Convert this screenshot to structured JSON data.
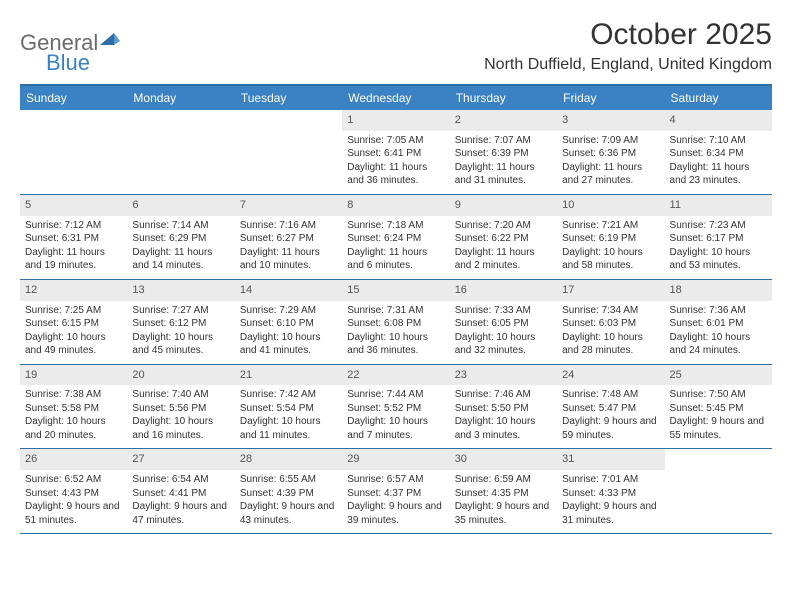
{
  "logo": {
    "general": "General",
    "blue": "Blue"
  },
  "title": "October 2025",
  "location": "North Duffield, England, United Kingdom",
  "colors": {
    "header_bg": "#3b82c4",
    "border": "#2f6ea8",
    "daynum_bg": "#ebebeb",
    "text": "#333333",
    "logo_gray": "#6b6b6b"
  },
  "weekdays": [
    "Sunday",
    "Monday",
    "Tuesday",
    "Wednesday",
    "Thursday",
    "Friday",
    "Saturday"
  ],
  "weeks": [
    [
      {
        "num": "",
        "sunrise": "",
        "sunset": "",
        "daylight": ""
      },
      {
        "num": "",
        "sunrise": "",
        "sunset": "",
        "daylight": ""
      },
      {
        "num": "",
        "sunrise": "",
        "sunset": "",
        "daylight": ""
      },
      {
        "num": "1",
        "sunrise": "Sunrise: 7:05 AM",
        "sunset": "Sunset: 6:41 PM",
        "daylight": "Daylight: 11 hours and 36 minutes."
      },
      {
        "num": "2",
        "sunrise": "Sunrise: 7:07 AM",
        "sunset": "Sunset: 6:39 PM",
        "daylight": "Daylight: 11 hours and 31 minutes."
      },
      {
        "num": "3",
        "sunrise": "Sunrise: 7:09 AM",
        "sunset": "Sunset: 6:36 PM",
        "daylight": "Daylight: 11 hours and 27 minutes."
      },
      {
        "num": "4",
        "sunrise": "Sunrise: 7:10 AM",
        "sunset": "Sunset: 6:34 PM",
        "daylight": "Daylight: 11 hours and 23 minutes."
      }
    ],
    [
      {
        "num": "5",
        "sunrise": "Sunrise: 7:12 AM",
        "sunset": "Sunset: 6:31 PM",
        "daylight": "Daylight: 11 hours and 19 minutes."
      },
      {
        "num": "6",
        "sunrise": "Sunrise: 7:14 AM",
        "sunset": "Sunset: 6:29 PM",
        "daylight": "Daylight: 11 hours and 14 minutes."
      },
      {
        "num": "7",
        "sunrise": "Sunrise: 7:16 AM",
        "sunset": "Sunset: 6:27 PM",
        "daylight": "Daylight: 11 hours and 10 minutes."
      },
      {
        "num": "8",
        "sunrise": "Sunrise: 7:18 AM",
        "sunset": "Sunset: 6:24 PM",
        "daylight": "Daylight: 11 hours and 6 minutes."
      },
      {
        "num": "9",
        "sunrise": "Sunrise: 7:20 AM",
        "sunset": "Sunset: 6:22 PM",
        "daylight": "Daylight: 11 hours and 2 minutes."
      },
      {
        "num": "10",
        "sunrise": "Sunrise: 7:21 AM",
        "sunset": "Sunset: 6:19 PM",
        "daylight": "Daylight: 10 hours and 58 minutes."
      },
      {
        "num": "11",
        "sunrise": "Sunrise: 7:23 AM",
        "sunset": "Sunset: 6:17 PM",
        "daylight": "Daylight: 10 hours and 53 minutes."
      }
    ],
    [
      {
        "num": "12",
        "sunrise": "Sunrise: 7:25 AM",
        "sunset": "Sunset: 6:15 PM",
        "daylight": "Daylight: 10 hours and 49 minutes."
      },
      {
        "num": "13",
        "sunrise": "Sunrise: 7:27 AM",
        "sunset": "Sunset: 6:12 PM",
        "daylight": "Daylight: 10 hours and 45 minutes."
      },
      {
        "num": "14",
        "sunrise": "Sunrise: 7:29 AM",
        "sunset": "Sunset: 6:10 PM",
        "daylight": "Daylight: 10 hours and 41 minutes."
      },
      {
        "num": "15",
        "sunrise": "Sunrise: 7:31 AM",
        "sunset": "Sunset: 6:08 PM",
        "daylight": "Daylight: 10 hours and 36 minutes."
      },
      {
        "num": "16",
        "sunrise": "Sunrise: 7:33 AM",
        "sunset": "Sunset: 6:05 PM",
        "daylight": "Daylight: 10 hours and 32 minutes."
      },
      {
        "num": "17",
        "sunrise": "Sunrise: 7:34 AM",
        "sunset": "Sunset: 6:03 PM",
        "daylight": "Daylight: 10 hours and 28 minutes."
      },
      {
        "num": "18",
        "sunrise": "Sunrise: 7:36 AM",
        "sunset": "Sunset: 6:01 PM",
        "daylight": "Daylight: 10 hours and 24 minutes."
      }
    ],
    [
      {
        "num": "19",
        "sunrise": "Sunrise: 7:38 AM",
        "sunset": "Sunset: 5:58 PM",
        "daylight": "Daylight: 10 hours and 20 minutes."
      },
      {
        "num": "20",
        "sunrise": "Sunrise: 7:40 AM",
        "sunset": "Sunset: 5:56 PM",
        "daylight": "Daylight: 10 hours and 16 minutes."
      },
      {
        "num": "21",
        "sunrise": "Sunrise: 7:42 AM",
        "sunset": "Sunset: 5:54 PM",
        "daylight": "Daylight: 10 hours and 11 minutes."
      },
      {
        "num": "22",
        "sunrise": "Sunrise: 7:44 AM",
        "sunset": "Sunset: 5:52 PM",
        "daylight": "Daylight: 10 hours and 7 minutes."
      },
      {
        "num": "23",
        "sunrise": "Sunrise: 7:46 AM",
        "sunset": "Sunset: 5:50 PM",
        "daylight": "Daylight: 10 hours and 3 minutes."
      },
      {
        "num": "24",
        "sunrise": "Sunrise: 7:48 AM",
        "sunset": "Sunset: 5:47 PM",
        "daylight": "Daylight: 9 hours and 59 minutes."
      },
      {
        "num": "25",
        "sunrise": "Sunrise: 7:50 AM",
        "sunset": "Sunset: 5:45 PM",
        "daylight": "Daylight: 9 hours and 55 minutes."
      }
    ],
    [
      {
        "num": "26",
        "sunrise": "Sunrise: 6:52 AM",
        "sunset": "Sunset: 4:43 PM",
        "daylight": "Daylight: 9 hours and 51 minutes."
      },
      {
        "num": "27",
        "sunrise": "Sunrise: 6:54 AM",
        "sunset": "Sunset: 4:41 PM",
        "daylight": "Daylight: 9 hours and 47 minutes."
      },
      {
        "num": "28",
        "sunrise": "Sunrise: 6:55 AM",
        "sunset": "Sunset: 4:39 PM",
        "daylight": "Daylight: 9 hours and 43 minutes."
      },
      {
        "num": "29",
        "sunrise": "Sunrise: 6:57 AM",
        "sunset": "Sunset: 4:37 PM",
        "daylight": "Daylight: 9 hours and 39 minutes."
      },
      {
        "num": "30",
        "sunrise": "Sunrise: 6:59 AM",
        "sunset": "Sunset: 4:35 PM",
        "daylight": "Daylight: 9 hours and 35 minutes."
      },
      {
        "num": "31",
        "sunrise": "Sunrise: 7:01 AM",
        "sunset": "Sunset: 4:33 PM",
        "daylight": "Daylight: 9 hours and 31 minutes."
      },
      {
        "num": "",
        "sunrise": "",
        "sunset": "",
        "daylight": ""
      }
    ]
  ]
}
